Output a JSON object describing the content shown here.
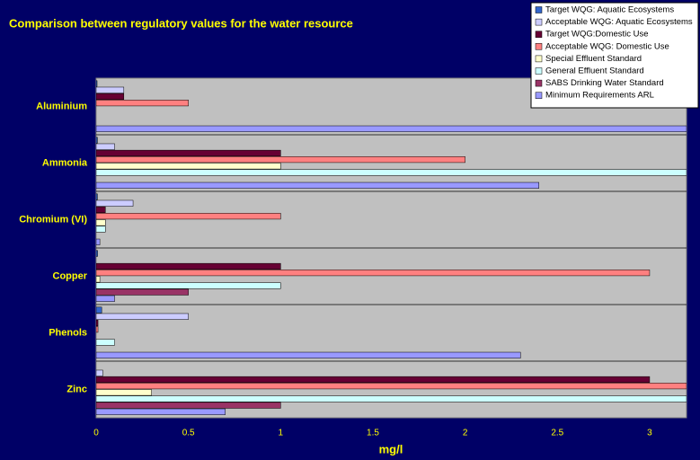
{
  "chart_data": {
    "type": "barh",
    "title": "Comparison between regulatory values for the water resource",
    "xlabel": "mg/l",
    "categories": [
      "Aluminium",
      "Ammonia",
      "Chromium (VI)",
      "Copper",
      "Phenols",
      "Zinc"
    ],
    "series": [
      {
        "name": "Target WQG: Aquatic Ecosystems",
        "color": "#3366cc",
        "values": [
          0.005,
          0.007,
          0.007,
          0.008,
          0.03,
          null
        ]
      },
      {
        "name": "Acceptable WQG: Aquatic Ecosystems",
        "color": "#ccccff",
        "values": [
          0.15,
          0.1,
          0.2,
          null,
          0.5,
          0.036
        ]
      },
      {
        "name": "Target WQG:Domestic Use",
        "color": "#660033",
        "values": [
          0.15,
          1,
          0.05,
          1,
          0.01,
          3
        ]
      },
      {
        "name": "Acceptable WQG: Domestic Use",
        "color": "#ff8080",
        "values": [
          0.5,
          2,
          1,
          3,
          0.01,
          3.2
        ]
      },
      {
        "name": "Special Effluent Standard",
        "color": "#ffffcc",
        "values": [
          null,
          1,
          0.05,
          0.02,
          null,
          0.3
        ]
      },
      {
        "name": "General Effluent Standard",
        "color": "#ccffff",
        "values": [
          null,
          3.2,
          0.05,
          1,
          0.1,
          3.2
        ]
      },
      {
        "name": "SABS Drinking Water Standard",
        "color": "#993366",
        "values": [
          null,
          null,
          null,
          0.5,
          null,
          1
        ]
      },
      {
        "name": "Minimum Requirements ARL",
        "color": "#9999ff",
        "values": [
          3.2,
          2.4,
          0.02,
          0.1,
          2.3,
          0.7
        ]
      }
    ],
    "xlim": [
      0,
      3.2
    ],
    "xticks": [
      0,
      0.5,
      1,
      1.5,
      2,
      2.5,
      3
    ],
    "legend": "top-right"
  }
}
